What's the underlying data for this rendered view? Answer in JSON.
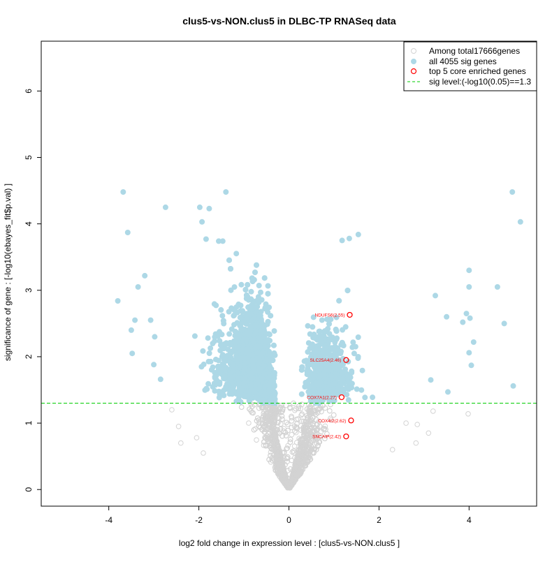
{
  "chart_data": {
    "type": "scatter",
    "title": "clus5-vs-NON.clus5 in DLBC-TP RNASeq data",
    "xlabel": "log2 fold change in expression level : [clus5-vs-NON.clus5 ]",
    "ylabel": "significance of gene : [-log10(ebayes_fit$p.val) ]",
    "xlim": [
      -5.5,
      5.5
    ],
    "ylim": [
      -0.25,
      6.75
    ],
    "xticks": [
      -4,
      -2,
      0,
      2,
      4
    ],
    "yticks": [
      0,
      1,
      2,
      3,
      4,
      5,
      6
    ],
    "grid": false,
    "legend_position": "top-right",
    "sig_level": 1.3,
    "colors": {
      "background_genes": "#d3d3d3",
      "sig_genes": "#add8e6",
      "core_genes": "#ff0000",
      "sig_line": "#00cc00"
    },
    "legend": [
      {
        "label": "Among total17666genes",
        "marker": "open-circle",
        "color": "#d3d3d3"
      },
      {
        "label": "all 4055 sig genes",
        "marker": "filled-circle",
        "color": "#add8e6"
      },
      {
        "label": "top 5 core enriched genes",
        "marker": "open-circle",
        "color": "#ff0000"
      },
      {
        "label": "sig level:(-log10(0.05)==1.3",
        "marker": "dashed-line",
        "color": "#00cc00"
      }
    ],
    "core_genes": [
      {
        "label": "NDUFS6(2.55)",
        "x": 1.35,
        "y": 2.63
      },
      {
        "label": "SLC25A4(2.46)",
        "x": 1.27,
        "y": 1.95
      },
      {
        "label": "COX7A1(2.27)",
        "x": 1.17,
        "y": 1.39
      },
      {
        "label": "COX4I2(2.62)",
        "x": 1.38,
        "y": 1.04
      },
      {
        "label": "SNCAIP(2.42)",
        "x": 1.27,
        "y": 0.8
      }
    ],
    "sig_outliers": [
      {
        "x": -3.68,
        "y": 4.48
      },
      {
        "x": -1.4,
        "y": 4.48
      },
      {
        "x": -2.74,
        "y": 4.25
      },
      {
        "x": -1.98,
        "y": 4.25
      },
      {
        "x": -1.77,
        "y": 4.23
      },
      {
        "x": -1.93,
        "y": 4.03
      },
      {
        "x": -3.58,
        "y": 3.87
      },
      {
        "x": -1.84,
        "y": 3.77
      },
      {
        "x": -1.56,
        "y": 3.74
      },
      {
        "x": -1.47,
        "y": 3.74
      },
      {
        "x": -3.8,
        "y": 2.84
      },
      {
        "x": -3.5,
        "y": 2.4
      },
      {
        "x": -3.42,
        "y": 2.55
      },
      {
        "x": -3.2,
        "y": 3.22
      },
      {
        "x": -3.35,
        "y": 3.05
      },
      {
        "x": -2.98,
        "y": 2.3
      },
      {
        "x": -3.0,
        "y": 1.88
      },
      {
        "x": -3.48,
        "y": 2.05
      },
      {
        "x": -2.85,
        "y": 1.66
      },
      {
        "x": -3.07,
        "y": 2.55
      },
      {
        "x": 4.96,
        "y": 4.48
      },
      {
        "x": 5.14,
        "y": 4.03
      },
      {
        "x": 1.54,
        "y": 3.84
      },
      {
        "x": 1.34,
        "y": 3.78
      },
      {
        "x": 1.18,
        "y": 3.75
      },
      {
        "x": 4.0,
        "y": 3.3
      },
      {
        "x": 4.0,
        "y": 3.05
      },
      {
        "x": 4.63,
        "y": 3.05
      },
      {
        "x": 3.94,
        "y": 2.65
      },
      {
        "x": 3.86,
        "y": 2.52
      },
      {
        "x": 4.02,
        "y": 2.58
      },
      {
        "x": 4.78,
        "y": 2.5
      },
      {
        "x": 4.1,
        "y": 2.22
      },
      {
        "x": 4.0,
        "y": 2.06
      },
      {
        "x": 4.05,
        "y": 1.87
      },
      {
        "x": 4.98,
        "y": 1.56
      },
      {
        "x": 3.25,
        "y": 2.92
      },
      {
        "x": 3.5,
        "y": 2.6
      },
      {
        "x": 3.15,
        "y": 1.65
      },
      {
        "x": 3.53,
        "y": 1.47
      }
    ],
    "ns_outliers": [
      {
        "x": 3.98,
        "y": 1.14
      },
      {
        "x": 3.2,
        "y": 1.18
      },
      {
        "x": 2.85,
        "y": 0.98
      },
      {
        "x": 2.82,
        "y": 0.7
      },
      {
        "x": 3.1,
        "y": 0.85
      },
      {
        "x": -2.6,
        "y": 1.2
      },
      {
        "x": -2.45,
        "y": 0.95
      },
      {
        "x": -2.4,
        "y": 0.7
      },
      {
        "x": -2.05,
        "y": 0.78
      },
      {
        "x": 2.6,
        "y": 1.0
      },
      {
        "x": 2.3,
        "y": 0.6
      },
      {
        "x": -1.9,
        "y": 0.55
      }
    ]
  }
}
